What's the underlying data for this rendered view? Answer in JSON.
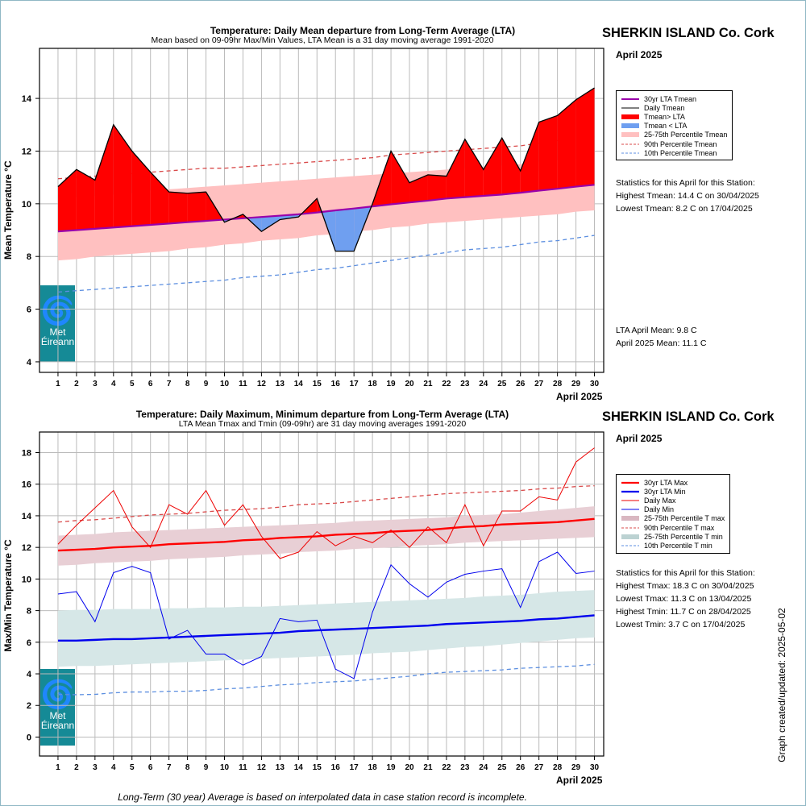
{
  "chart_data": [
    {
      "type": "area",
      "title": "Temperature: Daily Mean departure from Long-Term Average (LTA)",
      "subtitle": "Mean based on 09-09hr Max/Min Values, LTA Mean is a 31 day moving average 1991-2020",
      "station": "SHERKIN ISLAND Co. Cork",
      "month_label": "April 2025",
      "xlabel": "April 2025",
      "ylabel": "Mean Temperature °C",
      "xlim": [
        0,
        30.5
      ],
      "ylim": [
        3.6,
        15.9
      ],
      "yticks": [
        4,
        6,
        8,
        10,
        12,
        14
      ],
      "x": [
        1,
        2,
        3,
        4,
        5,
        6,
        7,
        8,
        9,
        10,
        11,
        12,
        13,
        14,
        15,
        16,
        17,
        18,
        19,
        20,
        21,
        22,
        23,
        24,
        25,
        26,
        27,
        28,
        29,
        30
      ],
      "x_tick_labels": [
        "1",
        "2",
        "3",
        "4",
        "5",
        "6",
        "7",
        "8",
        "9",
        "10",
        "11",
        "12",
        "13",
        "14",
        "15",
        "16",
        "17",
        "18",
        "19",
        "20",
        "21",
        "22",
        "23",
        "24",
        "25",
        "26",
        "27",
        "28",
        "29",
        "30"
      ],
      "grid": true,
      "legend_position": "right",
      "series": [
        {
          "name": "30yr LTA Tmean",
          "color": "#9900aa",
          "values": [
            8.95,
            9.0,
            9.05,
            9.1,
            9.15,
            9.2,
            9.25,
            9.3,
            9.35,
            9.4,
            9.45,
            9.5,
            9.55,
            9.6,
            9.67,
            9.75,
            9.82,
            9.9,
            9.98,
            10.05,
            10.12,
            10.2,
            10.25,
            10.3,
            10.35,
            10.42,
            10.5,
            10.57,
            10.65,
            10.72
          ]
        },
        {
          "name": "Daily Tmean",
          "color": "#000000",
          "values": [
            10.65,
            11.3,
            10.9,
            13.0,
            12.0,
            11.2,
            10.45,
            10.4,
            10.45,
            9.3,
            9.6,
            8.95,
            9.4,
            9.5,
            10.2,
            8.2,
            8.2,
            10.0,
            12.0,
            10.8,
            11.1,
            11.05,
            12.45,
            11.3,
            12.5,
            11.25,
            13.1,
            13.35,
            13.95,
            14.4
          ]
        },
        {
          "name": "25-75th Percentile Tmean",
          "color": "#ffc0c0",
          "lower": [
            7.85,
            7.9,
            8.0,
            8.05,
            8.1,
            8.15,
            8.2,
            8.3,
            8.35,
            8.45,
            8.5,
            8.6,
            8.65,
            8.7,
            8.8,
            8.85,
            8.95,
            9.0,
            9.1,
            9.15,
            9.25,
            9.3,
            9.35,
            9.4,
            9.45,
            9.5,
            9.55,
            9.6,
            9.7,
            9.75
          ],
          "upper": [
            10.2,
            10.25,
            10.3,
            10.35,
            10.4,
            10.5,
            10.55,
            10.6,
            10.65,
            10.7,
            10.75,
            10.8,
            10.85,
            10.9,
            10.95,
            11.0,
            11.05,
            11.1,
            11.15,
            11.2,
            11.25,
            11.3,
            11.35,
            11.4,
            11.45,
            11.5,
            11.6,
            11.65,
            11.7,
            11.8
          ]
        },
        {
          "name": "90th Percentile Tmean",
          "color": "#d94a4a",
          "values": [
            10.95,
            11.0,
            11.05,
            11.1,
            11.15,
            11.2,
            11.25,
            11.3,
            11.35,
            11.35,
            11.4,
            11.45,
            11.5,
            11.55,
            11.6,
            11.65,
            11.7,
            11.75,
            11.85,
            11.9,
            11.95,
            12.0,
            12.05,
            12.1,
            12.15,
            12.2,
            12.3,
            12.4,
            12.5,
            12.55
          ]
        },
        {
          "name": "10th Percentile Tmean",
          "color": "#5b8ee0",
          "values": [
            6.65,
            6.7,
            6.75,
            6.8,
            6.85,
            6.9,
            6.95,
            7.0,
            7.05,
            7.1,
            7.2,
            7.25,
            7.3,
            7.4,
            7.5,
            7.55,
            7.65,
            7.75,
            7.85,
            7.95,
            8.05,
            8.15,
            8.25,
            8.3,
            8.35,
            8.45,
            8.55,
            8.6,
            8.7,
            8.8
          ]
        }
      ],
      "fill_above_label": "Tmean> LTA",
      "fill_above_color": "#ff0000",
      "fill_below_label": "Tmean < LTA",
      "fill_below_color": "#6f9ff0",
      "stats_heading": "Statistics for this April for this Station:",
      "stats": [
        "Highest Tmean: 14.4 C on 30/04/2025",
        "Lowest Tmean: 8.2 C on 17/04/2025"
      ],
      "lta_lines": [
        "LTA April Mean: 9.8 C",
        "April 2025 Mean: 11.1 C"
      ]
    },
    {
      "type": "line",
      "title": "Temperature: Daily Maximum, Minimum departure from Long-Term Average (LTA)",
      "subtitle": "LTA Mean Tmax and Tmin (09-09hr) are 31 day moving averages 1991-2020",
      "station": "SHERKIN ISLAND Co. Cork",
      "month_label": "April 2025",
      "xlabel": "April 2025",
      "ylabel": "Max/Min Temperature °C",
      "xlim": [
        0,
        30.5
      ],
      "ylim": [
        -1.2,
        19.3
      ],
      "yticks": [
        0,
        2,
        4,
        6,
        8,
        10,
        12,
        14,
        16,
        18
      ],
      "x": [
        1,
        2,
        3,
        4,
        5,
        6,
        7,
        8,
        9,
        10,
        11,
        12,
        13,
        14,
        15,
        16,
        17,
        18,
        19,
        20,
        21,
        22,
        23,
        24,
        25,
        26,
        27,
        28,
        29,
        30
      ],
      "x_tick_labels": [
        "1",
        "2",
        "3",
        "4",
        "5",
        "6",
        "7",
        "8",
        "9",
        "10",
        "11",
        "12",
        "13",
        "14",
        "15",
        "16",
        "17",
        "18",
        "19",
        "20",
        "21",
        "22",
        "23",
        "24",
        "25",
        "26",
        "27",
        "28",
        "29",
        "30"
      ],
      "grid": true,
      "legend_position": "right",
      "series": [
        {
          "name": "30yr LTA Max",
          "color": "#ff0000",
          "values": [
            11.8,
            11.85,
            11.9,
            12.0,
            12.05,
            12.1,
            12.2,
            12.25,
            12.3,
            12.35,
            12.45,
            12.5,
            12.6,
            12.65,
            12.7,
            12.8,
            12.85,
            12.9,
            13.0,
            13.05,
            13.1,
            13.2,
            13.3,
            13.35,
            13.45,
            13.5,
            13.55,
            13.6,
            13.7,
            13.8
          ]
        },
        {
          "name": "30yr LTA Min",
          "color": "#0000ee",
          "values": [
            6.1,
            6.1,
            6.15,
            6.2,
            6.2,
            6.25,
            6.3,
            6.35,
            6.4,
            6.45,
            6.5,
            6.55,
            6.6,
            6.7,
            6.75,
            6.8,
            6.85,
            6.9,
            6.95,
            7.0,
            7.05,
            7.15,
            7.2,
            7.25,
            7.3,
            7.35,
            7.45,
            7.5,
            7.6,
            7.7
          ]
        },
        {
          "name": "Daily Max",
          "color": "#ee0000",
          "values": [
            12.2,
            13.4,
            14.5,
            15.6,
            13.3,
            12.0,
            14.7,
            14.1,
            15.6,
            13.4,
            14.7,
            12.7,
            11.3,
            11.7,
            13.0,
            12.1,
            12.7,
            12.3,
            13.1,
            12.0,
            13.3,
            12.3,
            14.7,
            12.1,
            14.3,
            14.3,
            15.2,
            15.0,
            17.4,
            18.3
          ]
        },
        {
          "name": "Daily Min",
          "color": "#0000ee",
          "values": [
            9.05,
            9.2,
            7.3,
            10.4,
            10.8,
            10.4,
            6.2,
            6.75,
            5.25,
            5.25,
            4.55,
            5.1,
            7.5,
            7.3,
            7.4,
            4.3,
            3.7,
            7.9,
            10.9,
            9.7,
            8.85,
            9.8,
            10.3,
            10.5,
            10.65,
            8.2,
            11.1,
            11.7,
            10.35,
            10.5
          ]
        },
        {
          "name": "25-75th Percentile T max",
          "color": "#e8cfd5",
          "lower": [
            10.85,
            10.9,
            11.0,
            11.05,
            11.1,
            11.15,
            11.25,
            11.3,
            11.35,
            11.4,
            11.5,
            11.55,
            11.6,
            11.7,
            11.75,
            11.8,
            11.9,
            11.95,
            12.0,
            12.1,
            12.15,
            12.2,
            12.3,
            12.35,
            12.4,
            12.45,
            12.5,
            12.55,
            12.6,
            12.65
          ],
          "upper": [
            12.75,
            12.8,
            12.85,
            12.95,
            13.0,
            13.05,
            13.1,
            13.15,
            13.2,
            13.25,
            13.3,
            13.35,
            13.4,
            13.45,
            13.5,
            13.55,
            13.65,
            13.7,
            13.75,
            13.8,
            13.85,
            13.9,
            14.0,
            14.05,
            14.1,
            14.2,
            14.3,
            14.4,
            14.5,
            14.6
          ]
        },
        {
          "name": "90th Percentile T max",
          "color": "#d94a4a",
          "values": [
            13.6,
            13.7,
            13.75,
            13.85,
            13.95,
            14.05,
            14.1,
            14.15,
            14.25,
            14.35,
            14.4,
            14.45,
            14.55,
            14.7,
            14.75,
            14.8,
            14.9,
            15.0,
            15.1,
            15.2,
            15.3,
            15.4,
            15.45,
            15.5,
            15.55,
            15.6,
            15.7,
            15.75,
            15.85,
            15.9
          ]
        },
        {
          "name": "25-75th Percentile T min",
          "color": "#d6e7e7",
          "lower": [
            4.45,
            4.5,
            4.5,
            4.55,
            4.6,
            4.65,
            4.7,
            4.75,
            4.8,
            4.85,
            4.9,
            4.95,
            5.0,
            5.05,
            5.1,
            5.15,
            5.2,
            5.3,
            5.35,
            5.4,
            5.5,
            5.6,
            5.7,
            5.75,
            5.85,
            5.95,
            6.05,
            6.15,
            6.25,
            6.3
          ],
          "upper": [
            8.0,
            8.05,
            8.05,
            8.1,
            8.1,
            8.1,
            8.15,
            8.15,
            8.2,
            8.2,
            8.25,
            8.25,
            8.3,
            8.35,
            8.4,
            8.45,
            8.5,
            8.55,
            8.6,
            8.65,
            8.7,
            8.75,
            8.8,
            8.9,
            8.95,
            9.0,
            9.1,
            9.2,
            9.25,
            9.3
          ]
        },
        {
          "name": "10th Percentile T min",
          "color": "#5b8ee0",
          "values": [
            2.7,
            2.68,
            2.7,
            2.8,
            2.85,
            2.85,
            2.9,
            2.9,
            2.95,
            3.05,
            3.1,
            3.2,
            3.3,
            3.35,
            3.45,
            3.5,
            3.55,
            3.65,
            3.75,
            3.85,
            4.0,
            4.1,
            4.15,
            4.2,
            4.25,
            4.35,
            4.4,
            4.45,
            4.5,
            4.6
          ]
        }
      ],
      "stats_heading": "Statistics for this April for this Station:",
      "stats": [
        "Highest Tmax: 18.3 C on 30/04/2025",
        "Lowest Tmax: 11.3 C on 13/04/2025",
        "Highest Tmin: 11.7 C on 28/04/2025",
        "Lowest Tmin: 3.7 C on 17/04/2025"
      ]
    }
  ],
  "logo": {
    "line1": "Met",
    "line2": "Éireann"
  },
  "footer_note": "Long-Term (30 year) Average is based on interpolated data in case station record is incomplete.",
  "updated_label": "Graph created/updated:  2025-05-02"
}
